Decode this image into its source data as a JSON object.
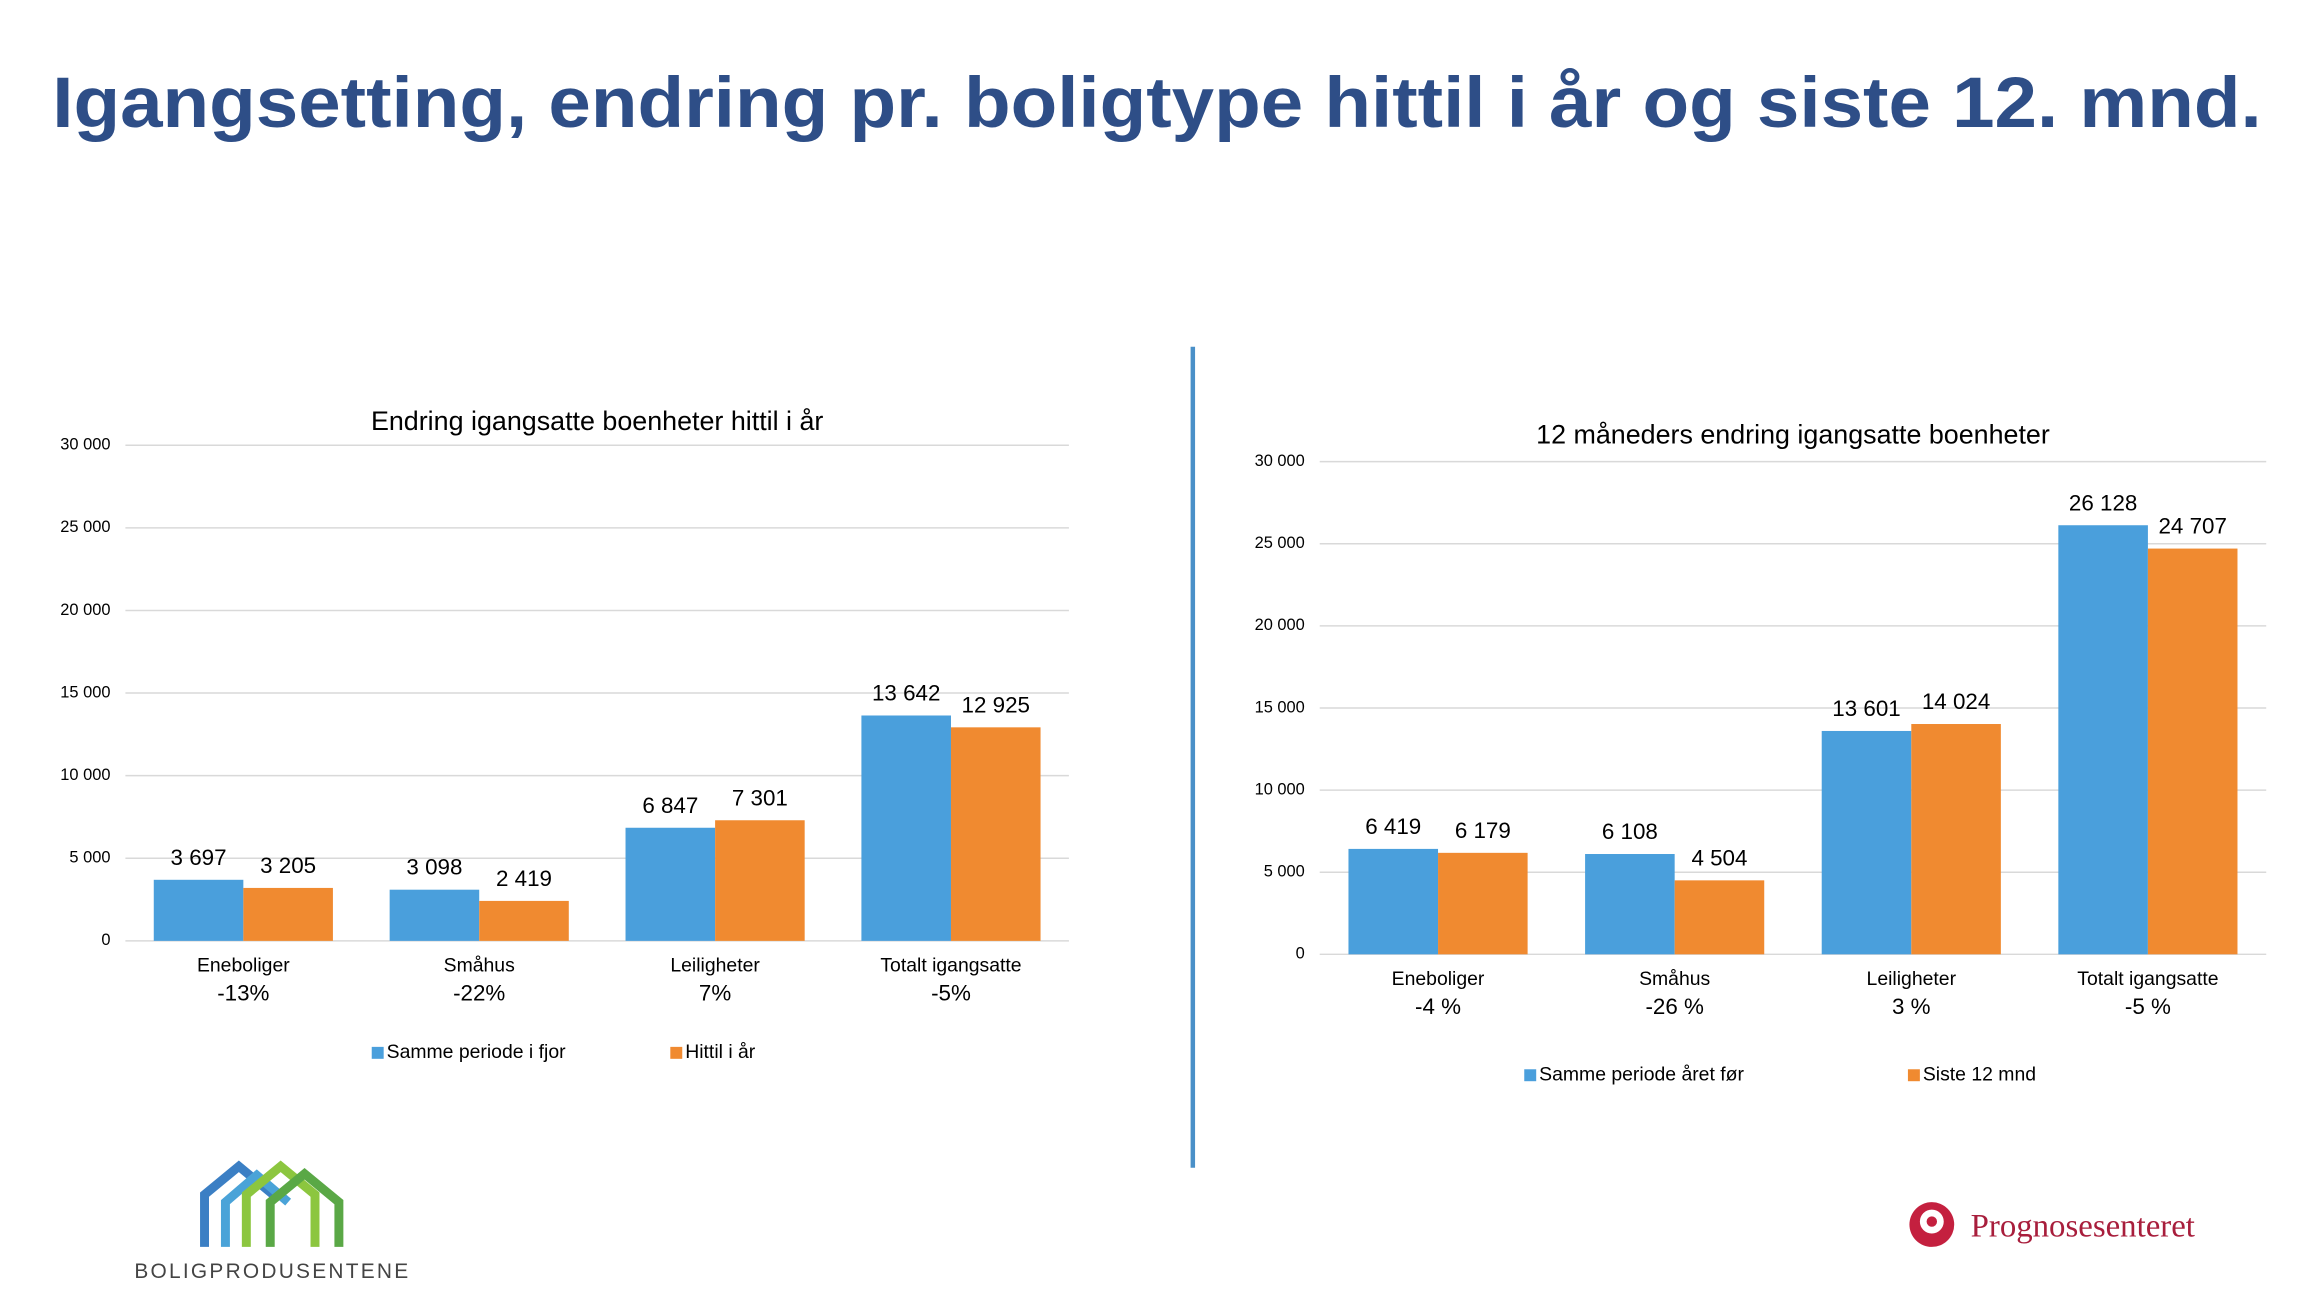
{
  "title": "Igangsetting, endring pr. boligtype hittil i år og siste 12. mnd.",
  "left_logo": "BOLIGPRODUSENTENE",
  "right_logo": "Prognosesenteret",
  "chart_data": [
    {
      "type": "bar",
      "title": "Endring igangsatte boenheter hittil i år",
      "categories": [
        "Eneboliger",
        "Småhus",
        "Leiligheter",
        "Totalt igangsatte"
      ],
      "category_changes": [
        "-13%",
        "-22%",
        "7%",
        "-5%"
      ],
      "series": [
        {
          "name": "Samme periode i fjor",
          "color": "#4a9fdc",
          "values": [
            3697,
            3098,
            6847,
            13642
          ],
          "value_labels": [
            "3 697",
            "3 098",
            "6 847",
            "13 642"
          ]
        },
        {
          "name": "Hittil i år",
          "color": "#f08a30",
          "values": [
            3205,
            2419,
            7301,
            12925
          ],
          "value_labels": [
            "3 205",
            "2 419",
            "7 301",
            "12 925"
          ]
        }
      ],
      "ylim": [
        0,
        30000
      ],
      "yticks": [
        0,
        {
          "value": 5000,
          "label": "5 000"
        },
        {
          "value": 10000,
          "label": "10 000"
        },
        {
          "value": 15000,
          "label": "15 000"
        },
        {
          "value": 20000,
          "label": "20 000"
        },
        {
          "value": 25000,
          "label": "25 000"
        },
        {
          "value": 30000,
          "label": "30 000"
        }
      ],
      "grid": true,
      "legend": "bottom"
    },
    {
      "type": "bar",
      "title": "12 måneders endring igangsatte boenheter",
      "categories": [
        "Eneboliger",
        "Småhus",
        "Leiligheter",
        "Totalt igangsatte"
      ],
      "category_changes": [
        "-4 %",
        "-26 %",
        "3 %",
        "-5 %"
      ],
      "series": [
        {
          "name": "Samme periode året før",
          "color": "#4a9fdc",
          "values": [
            6419,
            6108,
            13601,
            26128
          ],
          "value_labels": [
            "6 419",
            "6 108",
            "13 601",
            "26 128"
          ]
        },
        {
          "name": "Siste 12 mnd",
          "color": "#f08a30",
          "values": [
            6179,
            4504,
            14024,
            24707
          ],
          "value_labels": [
            "6 179",
            "4 504",
            "14 024",
            "24 707"
          ]
        }
      ],
      "ylim": [
        0,
        30000
      ],
      "yticks": [
        0,
        {
          "value": 5000,
          "label": "5 000"
        },
        {
          "value": 10000,
          "label": "10 000"
        },
        {
          "value": 15000,
          "label": "15 000"
        },
        {
          "value": 20000,
          "label": "20 000"
        },
        {
          "value": 25000,
          "label": "25 000"
        },
        {
          "value": 30000,
          "label": "30 000"
        }
      ],
      "grid": true,
      "legend": "bottom"
    }
  ]
}
